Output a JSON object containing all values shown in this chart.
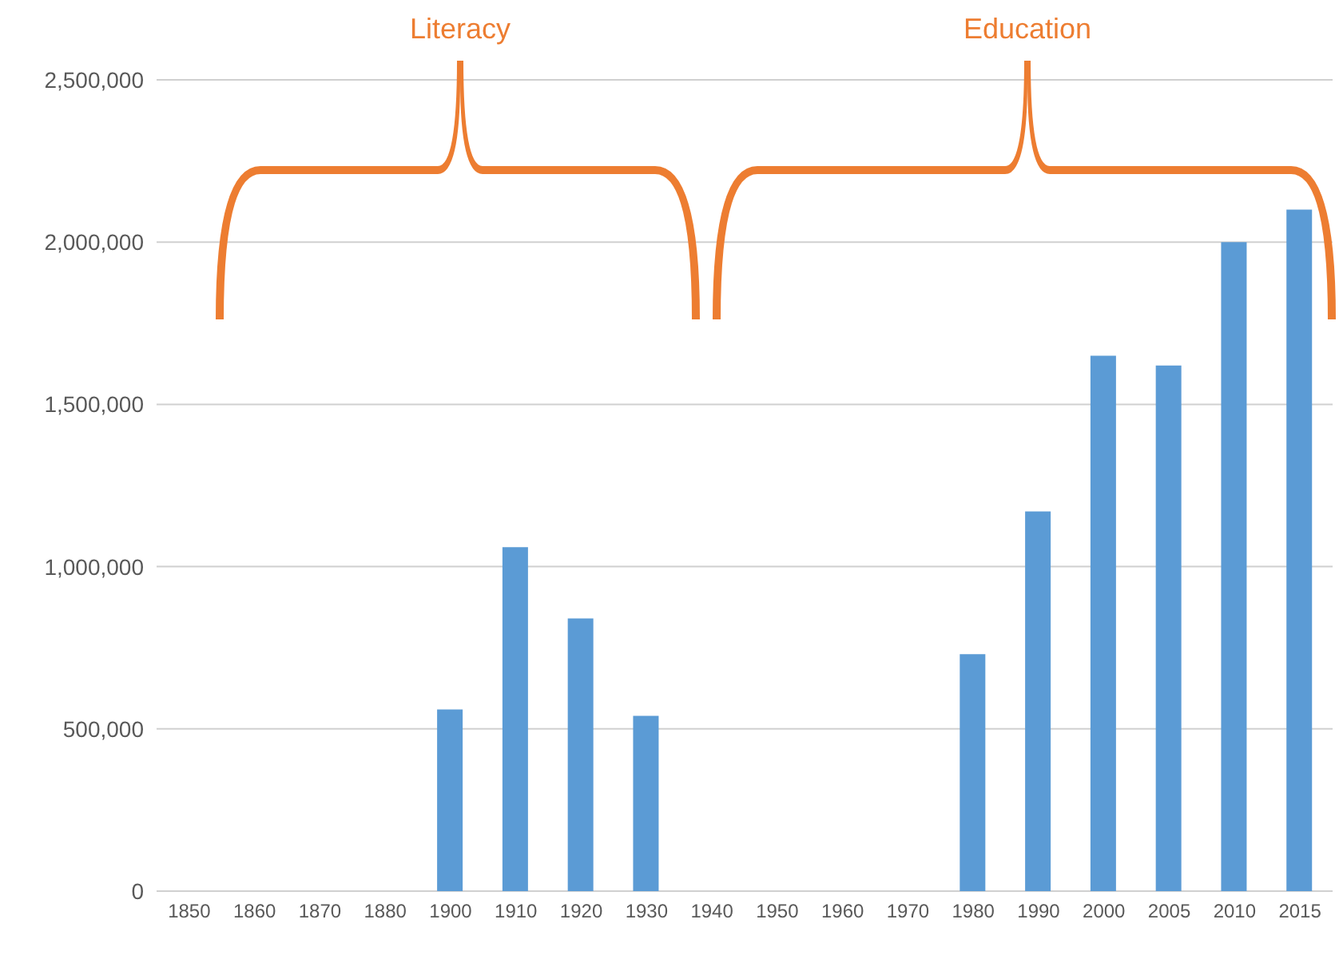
{
  "chart_data": {
    "type": "bar",
    "categories": [
      "1850",
      "1860",
      "1870",
      "1880",
      "1900",
      "1910",
      "1920",
      "1930",
      "1940",
      "1950",
      "1960",
      "1970",
      "1980",
      "1990",
      "2000",
      "2005",
      "2010",
      "2015"
    ],
    "values": [
      null,
      null,
      null,
      null,
      560000,
      1060000,
      840000,
      540000,
      null,
      null,
      null,
      null,
      730000,
      1170000,
      1650000,
      1620000,
      2000000,
      2100000
    ],
    "color": "#5b9bd5",
    "ylim": [
      0,
      2500000
    ],
    "yticks": [
      0,
      {
        "value": 500000,
        "label": "500,000"
      },
      {
        "value": 1000000,
        "label": "1,000,000"
      },
      {
        "value": 1500000,
        "label": "1,500,000"
      },
      {
        "value": 2000000,
        "label": "2,000,000"
      },
      {
        "value": 2500000,
        "label": "2,500,000"
      }
    ],
    "grid": "y",
    "annotations": [
      "Literacy",
      "Education"
    ]
  }
}
